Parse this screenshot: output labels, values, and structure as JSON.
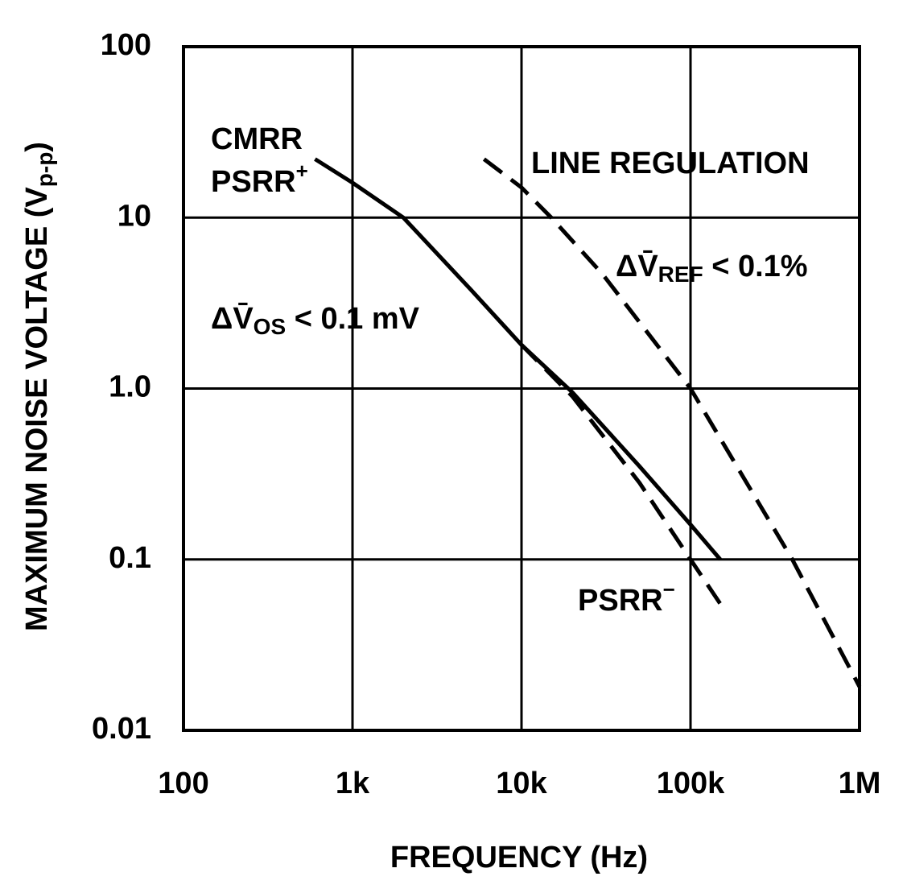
{
  "chart_data": {
    "type": "line",
    "xlabel": "FREQUENCY (Hz)",
    "ylabel": {
      "text": "MAXIMUM NOISE VOLTAGE (V",
      "sub": "p-p",
      "after": ")"
    },
    "xlog": true,
    "ylog": true,
    "grid": true,
    "xlim": [
      100,
      1000000
    ],
    "ylim": [
      0.01,
      100
    ],
    "xticks": [
      100,
      {
        "value": 1000,
        "label": "1k"
      },
      {
        "value": 10000,
        "label": "10k"
      },
      {
        "value": 100000,
        "label": "100k"
      },
      {
        "value": 1000000,
        "label": "1M"
      }
    ],
    "yticks": [
      0.01,
      0.1,
      {
        "value": 1,
        "label": "1.0"
      },
      10,
      100
    ],
    "series": [
      {
        "color": "#000000",
        "dash": false,
        "x": [
          600,
          1000,
          2000,
          5000,
          10000,
          20000,
          50000,
          100000,
          150000
        ],
        "values": [
          22,
          16,
          10,
          3.8,
          1.8,
          0.95,
          0.35,
          0.16,
          0.1
        ]
      },
      {
        "color": "#000000",
        "dash": true,
        "x": [
          10000,
          20000,
          50000,
          100000,
          150000
        ],
        "values": [
          1.8,
          0.9,
          0.28,
          0.1,
          0.055
        ]
      },
      {
        "color": "#000000",
        "dash": true,
        "x": [
          6000,
          10000,
          15000,
          30000,
          100000,
          400000,
          1000000
        ],
        "values": [
          22,
          15,
          10,
          4.7,
          1.0,
          0.1,
          0.018
        ]
      }
    ],
    "annotations": [
      {
        "text": "CMRR"
      },
      {
        "text": "PSRR",
        "sup": "+"
      },
      {
        "text": "LINE REGULATION"
      },
      {
        "text": "ΔV̄",
        "sub": "REF",
        "after": " < 0.1%"
      },
      {
        "text": "ΔV̄",
        "sub": "OS",
        "after": " < 0.1 mV"
      },
      {
        "text": "PSRR",
        "sup": "−"
      }
    ]
  }
}
